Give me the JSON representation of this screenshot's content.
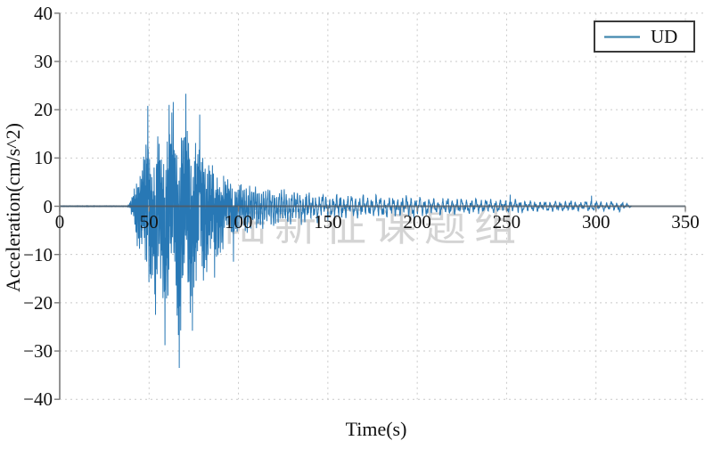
{
  "watermark": {
    "text": "陆新征课题组",
    "color": "#d2d2d2"
  },
  "colors": {
    "background": "#ffffff",
    "waveform": "#2878b5",
    "legend_line": "#4288ae",
    "axis_spine": "#7a7a7a",
    "zero_line": "#4f5a64",
    "grid": "#c9c9c9",
    "text": "#111111"
  },
  "chart_data": {
    "type": "line",
    "title": "",
    "xlabel": "Time(s)",
    "ylabel": "Acceleration(cm/s^2)",
    "xlim": [
      0,
      362
    ],
    "ylim": [
      -40,
      40
    ],
    "xticks": [
      0,
      50,
      100,
      150,
      200,
      250,
      300,
      350
    ],
    "yticks": [
      40,
      30,
      20,
      10,
      0,
      -10,
      -20,
      -30,
      -40
    ],
    "grid": {
      "visible": true,
      "style": "dashed"
    },
    "legend": {
      "position": "upper-right",
      "entries": [
        {
          "label": "UD",
          "color": "#2878b5"
        }
      ]
    },
    "series": [
      {
        "name": "UD",
        "color": "#2878b5",
        "signal_summary": {
          "start_time_s": 38,
          "end_time_s": 320,
          "peak_positive_cm_s2": 23.3,
          "peak_negative_cm_s2": -33.5,
          "strong_motion_window_s": [
            44,
            90
          ]
        },
        "envelope": [
          [
            0,
            0.1,
            -0.1
          ],
          [
            36,
            0.12,
            -0.12
          ],
          [
            39,
            0.6,
            -0.6
          ],
          [
            41,
            3.5,
            -4
          ],
          [
            43,
            7.5,
            -8
          ],
          [
            45,
            10,
            -11
          ],
          [
            47,
            13,
            -15
          ],
          [
            49,
            20,
            -17
          ],
          [
            51,
            16,
            -19
          ],
          [
            53,
            15.5,
            -22
          ],
          [
            55,
            17.5,
            -24.5
          ],
          [
            57,
            16.5,
            -26.5
          ],
          [
            59,
            18.5,
            -28.5
          ],
          [
            61,
            20.5,
            -26
          ],
          [
            63,
            21.5,
            -27.5
          ],
          [
            65,
            19.5,
            -29.5
          ],
          [
            67,
            19,
            -32.5
          ],
          [
            69,
            21.5,
            -26.5
          ],
          [
            71,
            22.8,
            -24.5
          ],
          [
            73,
            19.5,
            -25.5
          ],
          [
            75,
            17.5,
            -23
          ],
          [
            77,
            16.5,
            -23.5
          ],
          [
            79,
            17.5,
            -20.5
          ],
          [
            81,
            14.5,
            -18.5
          ],
          [
            83,
            12.5,
            -16
          ],
          [
            85,
            11.5,
            -14
          ],
          [
            87,
            10,
            -14.5
          ],
          [
            89,
            9,
            -11.5
          ],
          [
            91,
            8,
            -10
          ],
          [
            93,
            7.2,
            -9
          ],
          [
            96,
            6.8,
            -8.2
          ],
          [
            99,
            6.2,
            -7.6
          ],
          [
            102,
            5.8,
            -7.2
          ],
          [
            106,
            5.2,
            -6.4
          ],
          [
            110,
            4.9,
            -5.8
          ],
          [
            115,
            4.6,
            -5.2
          ],
          [
            120,
            4.5,
            -5
          ],
          [
            126,
            4.1,
            -4.5
          ],
          [
            132,
            3.8,
            -4.2
          ],
          [
            139,
            3.5,
            -3.9
          ],
          [
            146,
            3.2,
            -3.6
          ],
          [
            154,
            3.1,
            -3.3
          ],
          [
            162,
            2.9,
            -3.1
          ],
          [
            170,
            2.7,
            -2.9
          ],
          [
            179,
            2.6,
            -2.8
          ],
          [
            188,
            2.4,
            -2.6
          ],
          [
            197,
            2.3,
            -2.5
          ],
          [
            206,
            2.2,
            -2.4
          ],
          [
            215,
            2.1,
            -2.3
          ],
          [
            224,
            2.0,
            -2.1
          ],
          [
            233,
            1.85,
            -1.95
          ],
          [
            242,
            1.7,
            -1.85
          ],
          [
            251,
            1.8,
            -1.7
          ],
          [
            258,
            1.5,
            -1.6
          ],
          [
            266,
            1.4,
            -1.5
          ],
          [
            274,
            1.3,
            -1.4
          ],
          [
            282,
            1.25,
            -1.3
          ],
          [
            290,
            1.15,
            -1.2
          ],
          [
            297,
            1.4,
            -1.2
          ],
          [
            303,
            1.1,
            -1.1
          ],
          [
            308,
            1.2,
            -1.3
          ],
          [
            313,
            1.4,
            -1.2
          ],
          [
            316,
            0.8,
            -0.8
          ],
          [
            319,
            0.3,
            -0.3
          ],
          [
            320,
            0.1,
            -0.1
          ]
        ],
        "spikes": [
          [
            49.3,
            20.8
          ],
          [
            53.6,
            -22.5
          ],
          [
            58.9,
            -28.8
          ],
          [
            61.2,
            21.0
          ],
          [
            63.5,
            21.6
          ],
          [
            66.9,
            -33.5
          ],
          [
            70.6,
            23.3
          ],
          [
            74.2,
            -25.8
          ],
          [
            78.3,
            19.0
          ],
          [
            86.6,
            -14.8
          ],
          [
            97.2,
            -11.5
          ],
          [
            252.0,
            2.4
          ],
          [
            297.5,
            2.2
          ]
        ],
        "freq_profile_hz": [
          [
            0,
            1.55
          ],
          [
            85,
            1.5
          ],
          [
            110,
            0.9
          ],
          [
            140,
            0.55
          ],
          [
            175,
            0.42
          ],
          [
            230,
            0.37
          ],
          [
            320,
            0.34
          ]
        ]
      }
    ]
  }
}
